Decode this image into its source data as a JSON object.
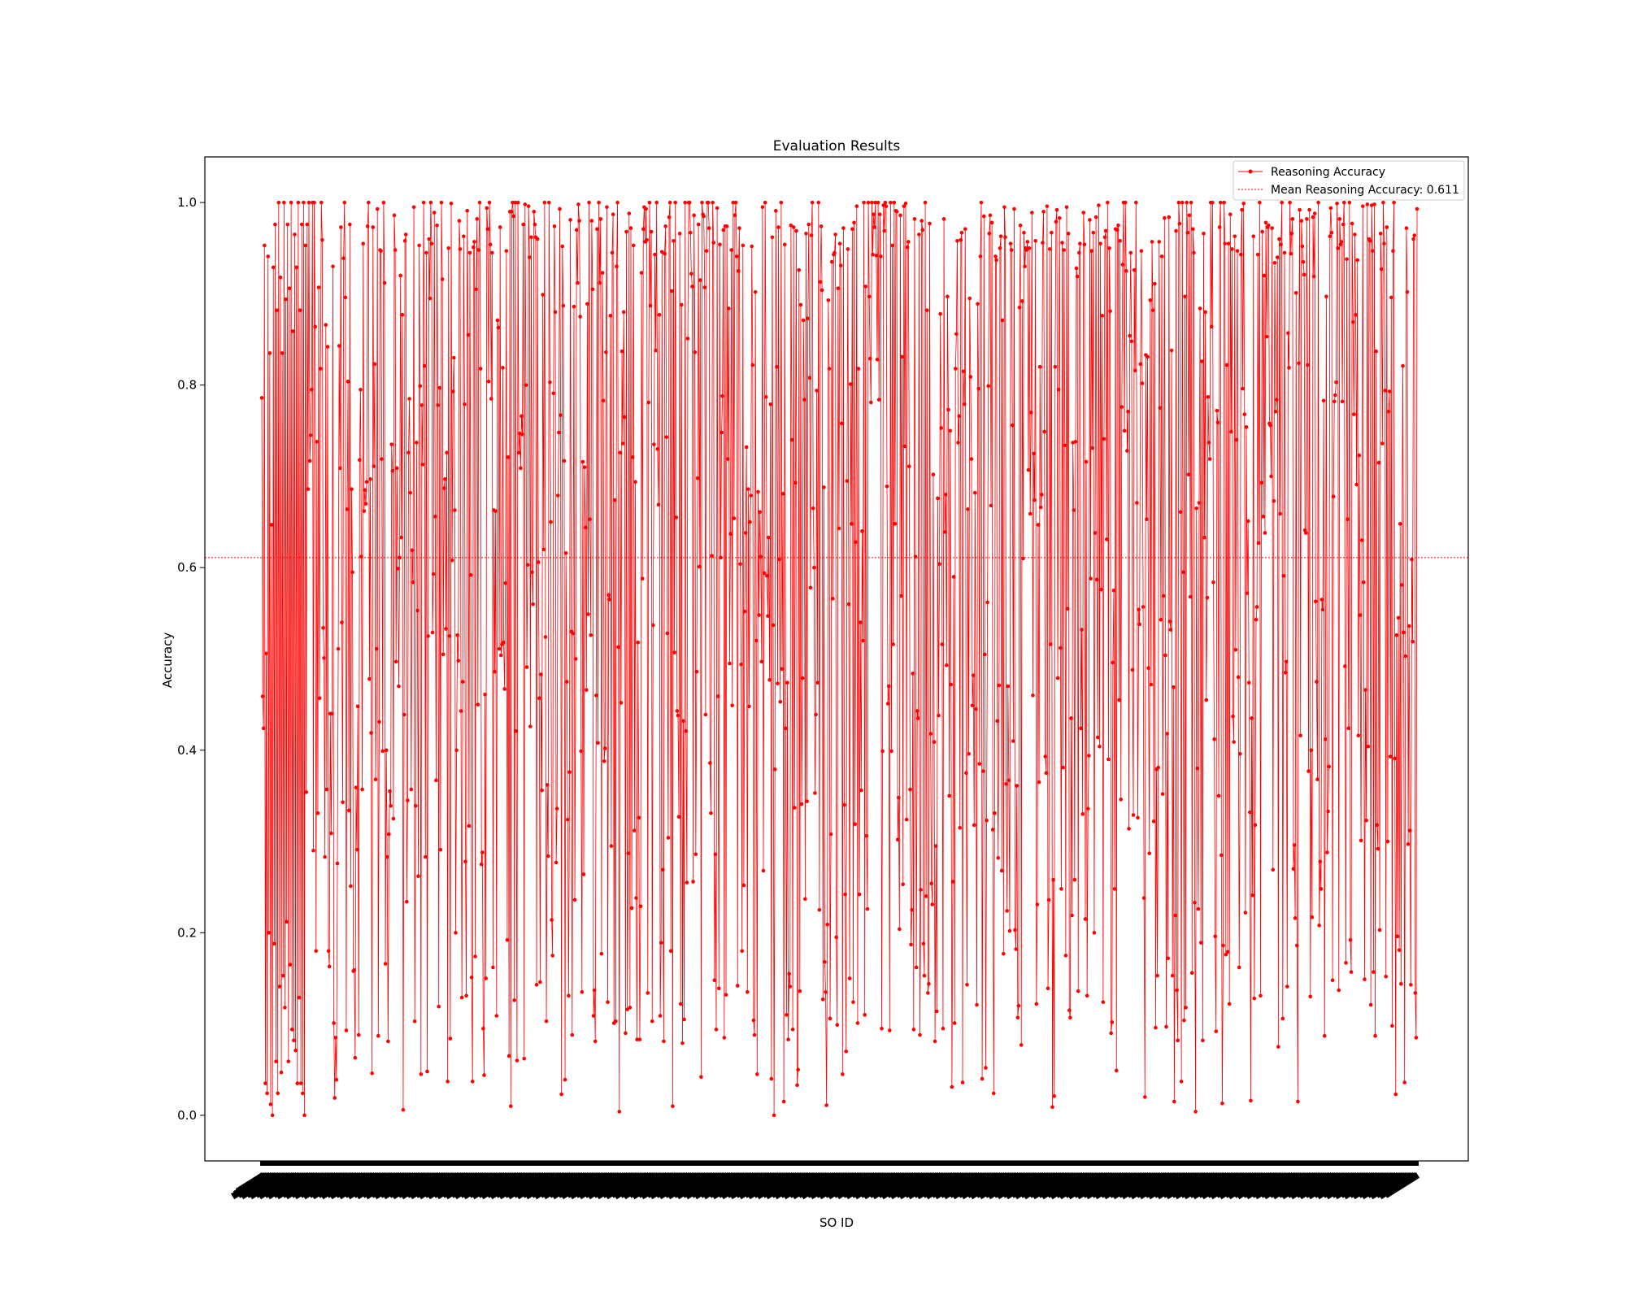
{
  "chart_data": {
    "type": "line",
    "title": "Evaluation Results",
    "xlabel": "SO ID",
    "ylabel": "Accuracy",
    "ylim": [
      -0.05,
      1.05
    ],
    "yticks": [
      0.0,
      0.2,
      0.4,
      0.6,
      0.8,
      1.0
    ],
    "ytick_labels": [
      "0.0",
      "0.2",
      "0.4",
      "0.6",
      "0.8",
      "1.0"
    ],
    "grid": false,
    "legend_position": "top-right",
    "point_count": 1300,
    "series": [
      {
        "name": "Reasoning Accuracy",
        "color": "#ff0000",
        "marker": "circle",
        "values_note": "",
        "sample_values": [
          0.786,
          0.459,
          0.424,
          0.953,
          0.035,
          0.506,
          0.024,
          0.941,
          0.2,
          0.835,
          0.012,
          0.647,
          0.0,
          0.929,
          0.188,
          0.976,
          0.059,
          0.882,
          0.024,
          1.0,
          0.141,
          0.918,
          0.047,
          0.835,
          0.153,
          1.0,
          0.118,
          0.894,
          0.212,
          0.976,
          0.059,
          0.906,
          0.165,
          1.0,
          0.094,
          0.859,
          0.082,
          0.965,
          0.071,
          0.929,
          0.035,
          1.0,
          0.129,
          0.882,
          0.035,
          0.976,
          0.024,
          1.0,
          0.0,
          0.953
        ]
      },
      {
        "name": "Mean Reasoning Accuracy: 0.611",
        "color": "#ff0000",
        "style": "dotted",
        "value": 0.611
      }
    ]
  }
}
